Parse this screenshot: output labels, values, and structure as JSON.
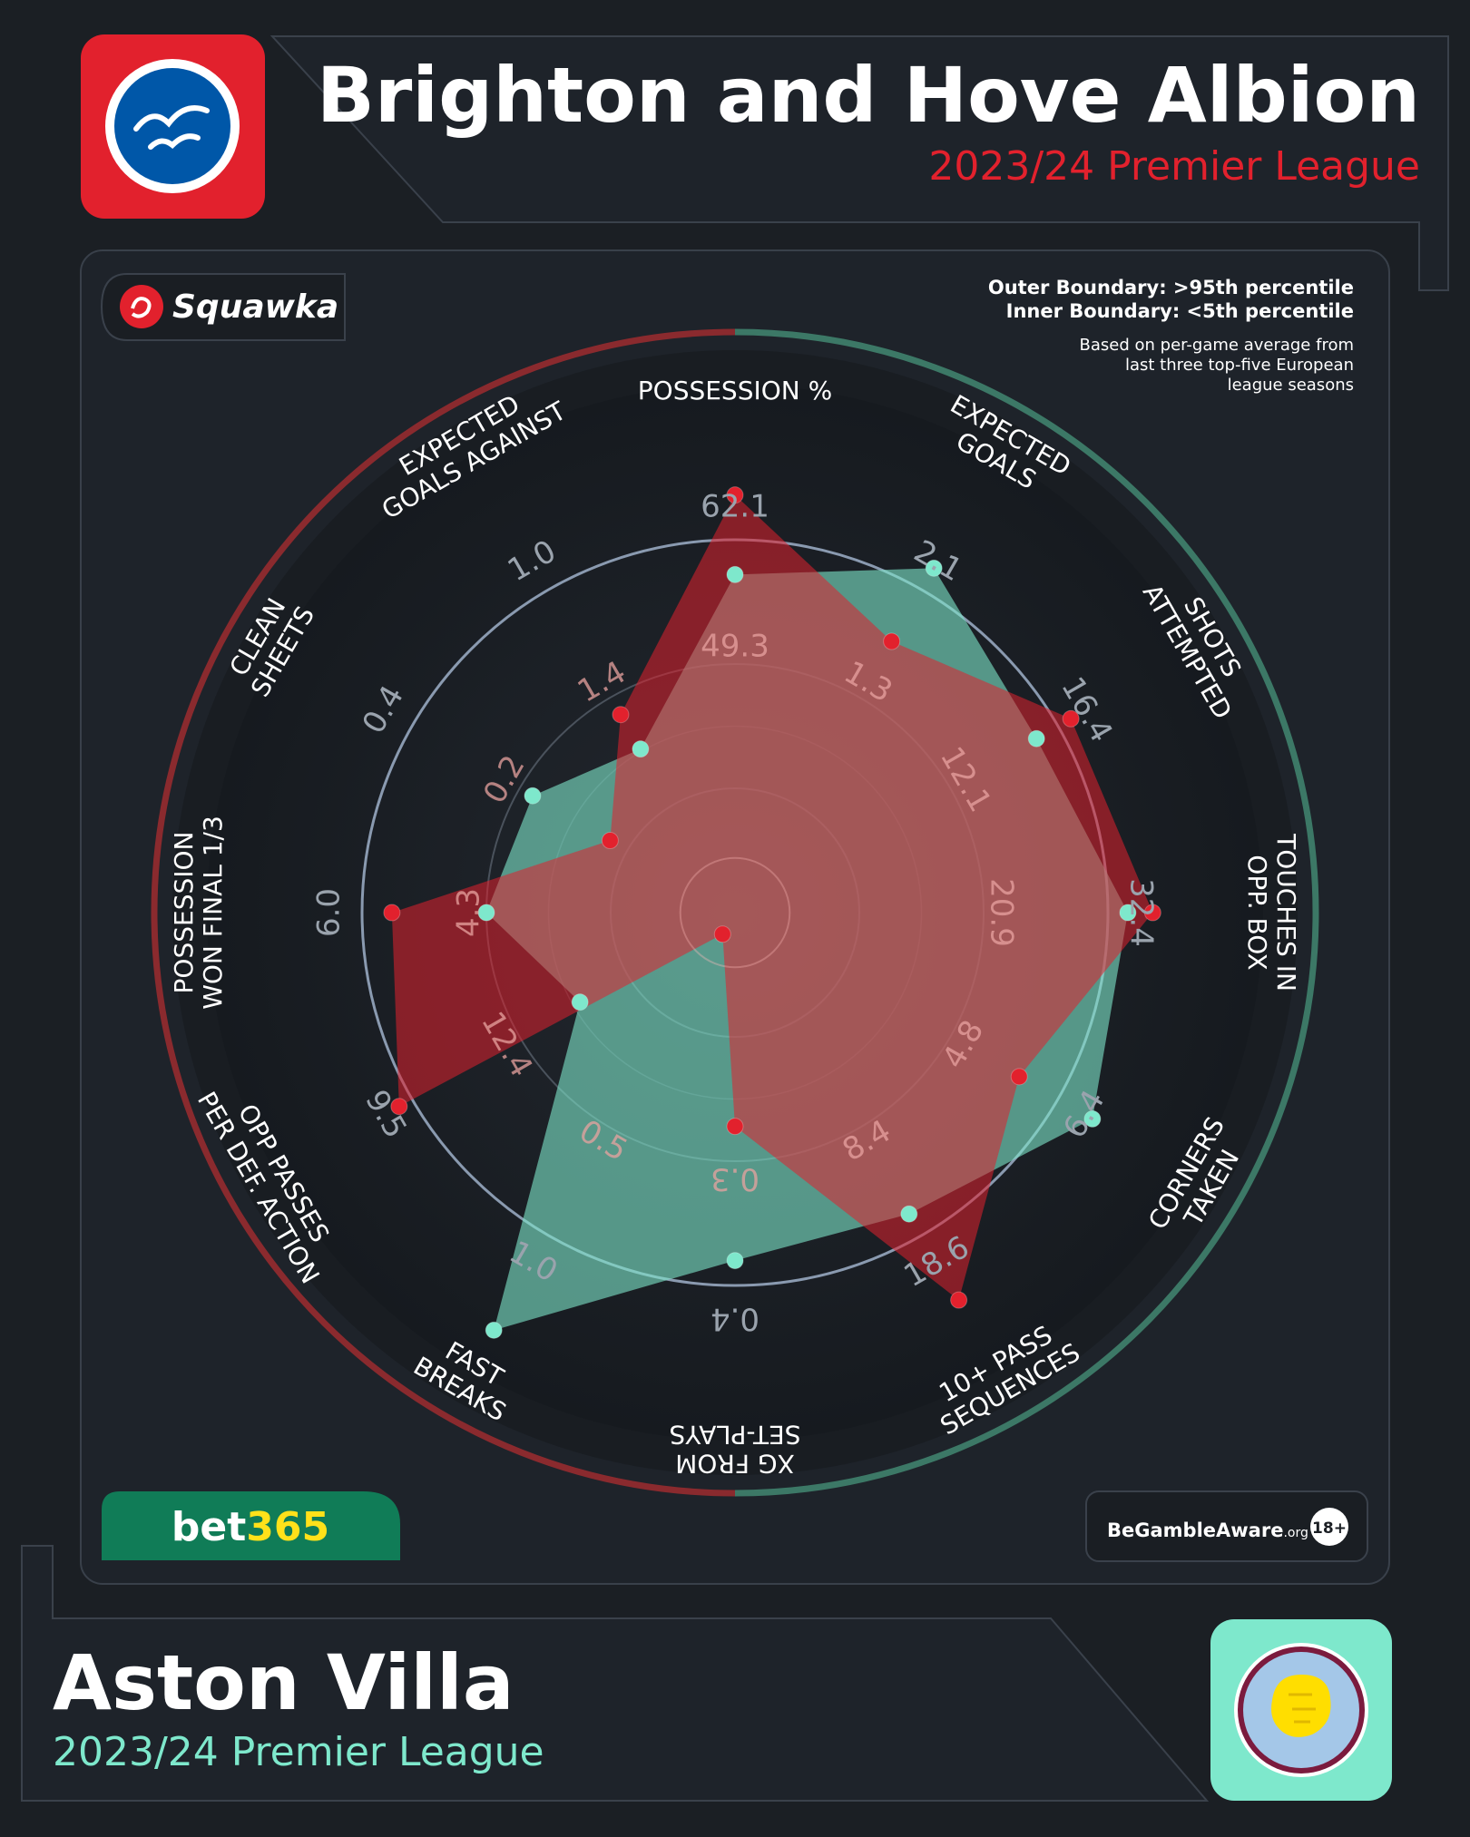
{
  "header": {
    "team": "Brighton and Hove Albion",
    "subtitle": "2023/24 Premier League",
    "badge_icon": "seagull-crest-icon"
  },
  "footer": {
    "team": "Aston Villa",
    "subtitle": "2023/24 Premier League",
    "badge_icon": "lion-crest-icon"
  },
  "branding": {
    "publisher": "Squawka",
    "sponsor_prefix": "bet",
    "sponsor_suffix": "365",
    "gamble_aware": "BeGambleAware",
    "gamble_aware_suffix": ".org",
    "age_badge": "18+"
  },
  "notes": {
    "outer": "Outer Boundary: >95th percentile",
    "inner": "Inner Boundary: <5th percentile",
    "basis_line1": "Based on per-game average from",
    "basis_line2": "last three top-five European",
    "basis_line3": "league seasons"
  },
  "colors": {
    "team1": "#e2212d",
    "team2": "#7ee8cc",
    "background": "#1b1f24",
    "panel": "#1e232a",
    "ring": "#8a9ab0",
    "sponsor_green": "#107c57",
    "sponsor_yellow": "#ffe11a"
  },
  "chart_data": {
    "type": "radar",
    "ring_levels": [
      0.25,
      0.5,
      0.75
    ],
    "axes": [
      {
        "name": "POSSESSION %",
        "label_lines": [
          "POSSESSION %"
        ],
        "ticks": [
          "49.3",
          "62.1"
        ],
        "flip": false
      },
      {
        "name": "EXPECTED GOALS",
        "label_lines": [
          "EXPECTED",
          "GOALS"
        ],
        "ticks": [
          "1.3",
          "2.1"
        ],
        "flip": false
      },
      {
        "name": "SHOTS ATTEMPTED",
        "label_lines": [
          "SHOTS",
          "ATTEMPTED"
        ],
        "ticks": [
          "12.1",
          "16.4"
        ],
        "flip": false
      },
      {
        "name": "TOUCHES IN OPP. BOX",
        "label_lines": [
          "TOUCHES IN",
          "OPP. BOX"
        ],
        "ticks": [
          "20.9",
          "32.4"
        ],
        "flip": false
      },
      {
        "name": "CORNERS TAKEN",
        "label_lines": [
          "CORNERS",
          "TAKEN"
        ],
        "ticks": [
          "4.8",
          "6.4"
        ],
        "flip": true
      },
      {
        "name": "10+ PASS SEQUENCES",
        "label_lines": [
          "10+ PASS",
          "SEQUENCES"
        ],
        "ticks": [
          "8.4",
          "18.6"
        ],
        "flip": true
      },
      {
        "name": "XG FROM SET-PLAYS",
        "label_lines": [
          "XG FROM",
          "SET-PLAYS"
        ],
        "ticks": [
          "0.3",
          "0.4"
        ],
        "flip": false
      },
      {
        "name": "FAST BREAKS",
        "label_lines": [
          "FAST",
          "BREAKS"
        ],
        "ticks": [
          "0.5",
          "1.0"
        ],
        "flip": true
      },
      {
        "name": "OPP PASSES PER DEF. ACTION",
        "label_lines": [
          "OPP PASSES",
          "PER DEF. ACTION"
        ],
        "ticks": [
          "12.4",
          "9.5"
        ],
        "flip": true
      },
      {
        "name": "POSSESSION WON FINAL 1/3",
        "label_lines": [
          "POSSESSION",
          "WON FINAL 1/3"
        ],
        "ticks": [
          "4.3",
          "6.0"
        ],
        "flip": false
      },
      {
        "name": "CLEAN SHEETS",
        "label_lines": [
          "CLEAN",
          "SHEETS"
        ],
        "ticks": [
          "0.2",
          "0.4"
        ],
        "flip": false
      },
      {
        "name": "EXPECTED GOALS AGAINST",
        "label_lines": [
          "EXPECTED",
          "GOALS AGAINST"
        ],
        "ticks": [
          "1.4",
          "1.0"
        ],
        "flip": false
      }
    ],
    "series": [
      {
        "name": "Brighton and Hove Albion",
        "color": "#e2212d",
        "values": [
          0.84,
          0.63,
          0.78,
          0.84,
          0.66,
          0.9,
          0.43,
          0.05,
          0.78,
          0.69,
          0.29,
          0.46
        ]
      },
      {
        "name": "Aston Villa",
        "color": "#7ee8cc",
        "values": [
          0.68,
          0.8,
          0.7,
          0.79,
          0.83,
          0.7,
          0.7,
          0.97,
          0.36,
          0.5,
          0.47,
          0.38
        ]
      }
    ]
  }
}
